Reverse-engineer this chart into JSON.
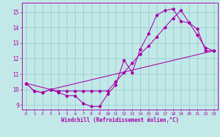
{
  "xlabel": "Windchill (Refroidissement éolien,°C)",
  "xlim": [
    -0.5,
    23.5
  ],
  "ylim": [
    8.7,
    15.6
  ],
  "yticks": [
    9,
    10,
    11,
    12,
    13,
    14,
    15
  ],
  "xticks": [
    0,
    1,
    2,
    3,
    4,
    5,
    6,
    7,
    8,
    9,
    10,
    11,
    12,
    13,
    14,
    15,
    16,
    17,
    18,
    19,
    20,
    21,
    22,
    23
  ],
  "background_color": "#c2e8e8",
  "grid_color": "#99cccc",
  "line_color": "#aa00aa",
  "line1_x": [
    0,
    1,
    2,
    3,
    4,
    5,
    6,
    7,
    8,
    9,
    10,
    11,
    12,
    13,
    14,
    15,
    16,
    17,
    18,
    19,
    20,
    21,
    22,
    23
  ],
  "line1_y": [
    10.4,
    9.9,
    9.8,
    10.0,
    9.8,
    9.6,
    9.6,
    9.1,
    8.9,
    8.9,
    9.7,
    10.3,
    11.9,
    11.1,
    12.6,
    13.6,
    14.8,
    15.1,
    15.2,
    14.4,
    14.3,
    13.9,
    12.5,
    12.5
  ],
  "line2_x": [
    0,
    1,
    2,
    3,
    4,
    5,
    6,
    7,
    8,
    9,
    10,
    11,
    12,
    13,
    14,
    15,
    16,
    17,
    18,
    19,
    20,
    21,
    22,
    23
  ],
  "line2_y": [
    10.4,
    9.9,
    9.8,
    10.0,
    9.9,
    9.9,
    9.9,
    9.9,
    9.9,
    9.9,
    9.9,
    10.5,
    11.1,
    11.7,
    12.3,
    12.8,
    13.4,
    14.0,
    14.6,
    15.1,
    14.3,
    13.5,
    12.7,
    12.5
  ],
  "line3_x": [
    0,
    3,
    23
  ],
  "line3_y": [
    10.4,
    10.0,
    12.5
  ]
}
